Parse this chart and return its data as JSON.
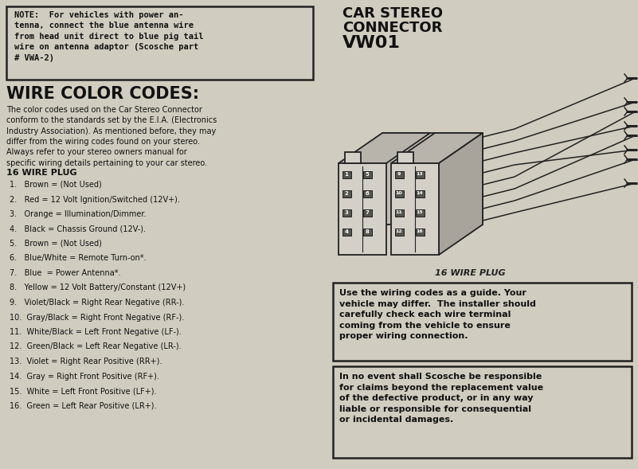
{
  "bg_color": "#d0ccbf",
  "note_box_text": "NOTE:  For vehicles with power an-\ntenna, connect the blue antenna wire\nfrom head unit direct to blue pig tail\nwire on antenna adaptor (Scosche part\n# VWA-2)",
  "wire_color_codes_title": "WIRE COLOR CODES:",
  "wire_color_codes_body": "The color codes used on the Car Stereo Connector\nconform to the standards set by the E.I.A. (Electronics\nIndustry Association). As mentioned before, they may\ndiffer from the wiring codes found on your stereo.\nAlways refer to your stereo owners manual for\nspecific wiring details pertaining to your car stereo.",
  "plug_title": "16 WIRE PLUG",
  "wire_list": [
    "1.   Brown = (Not Used)",
    "2.   Red = 12 Volt Ignition/Switched (12V+).",
    "3.   Orange = Illumination/Dimmer.",
    "4.   Black = Chassis Ground (12V-).",
    "5.   Brown = (Not Used)",
    "6.   Blue/White = Remote Turn-on*.",
    "7.   Blue  = Power Antenna*.",
    "8.   Yellow = 12 Volt Battery/Constant (12V+)",
    "9.   Violet/Black = Right Rear Negative (RR-).",
    "10.  Gray/Black = Right Front Negative (RF-).",
    "11.  White/Black = Left Front Negative (LF-).",
    "12.  Green/Black = Left Rear Negative (LR-).",
    "13.  Violet = Right Rear Positive (RR+).",
    "14.  Gray = Right Front Positive (RF+).",
    "15.  White = Left Front Positive (LF+).",
    "16.  Green = Left Rear Positive (LR+)."
  ],
  "car_stereo_title_line1": "CAR STEREO",
  "car_stereo_title_line2": "CONNECTOR",
  "car_stereo_title_line3": "VW01",
  "plug_label": "16 WIRE PLUG",
  "warning_box1": "Use the wiring codes as a guide. Your\nvehicle may differ.  The installer should\ncarefully check each wire terminal\ncoming from the vehicle to ensure\nproper wiring connection.",
  "warning_box2": "In no event shall Scosche be responsible\nfor claims beyond the replacement value\nof the defective product, or in any way\nliable or responsible for consequential\nor incidental damages.",
  "pin_left_labels": [
    [
      "1",
      "5"
    ],
    [
      "2",
      "6"
    ],
    [
      "3",
      "7"
    ],
    [
      "4",
      "8"
    ]
  ],
  "pin_right_labels": [
    [
      "9",
      "13"
    ],
    [
      "10",
      "14"
    ],
    [
      "11",
      "15"
    ],
    [
      "12",
      "16"
    ]
  ]
}
